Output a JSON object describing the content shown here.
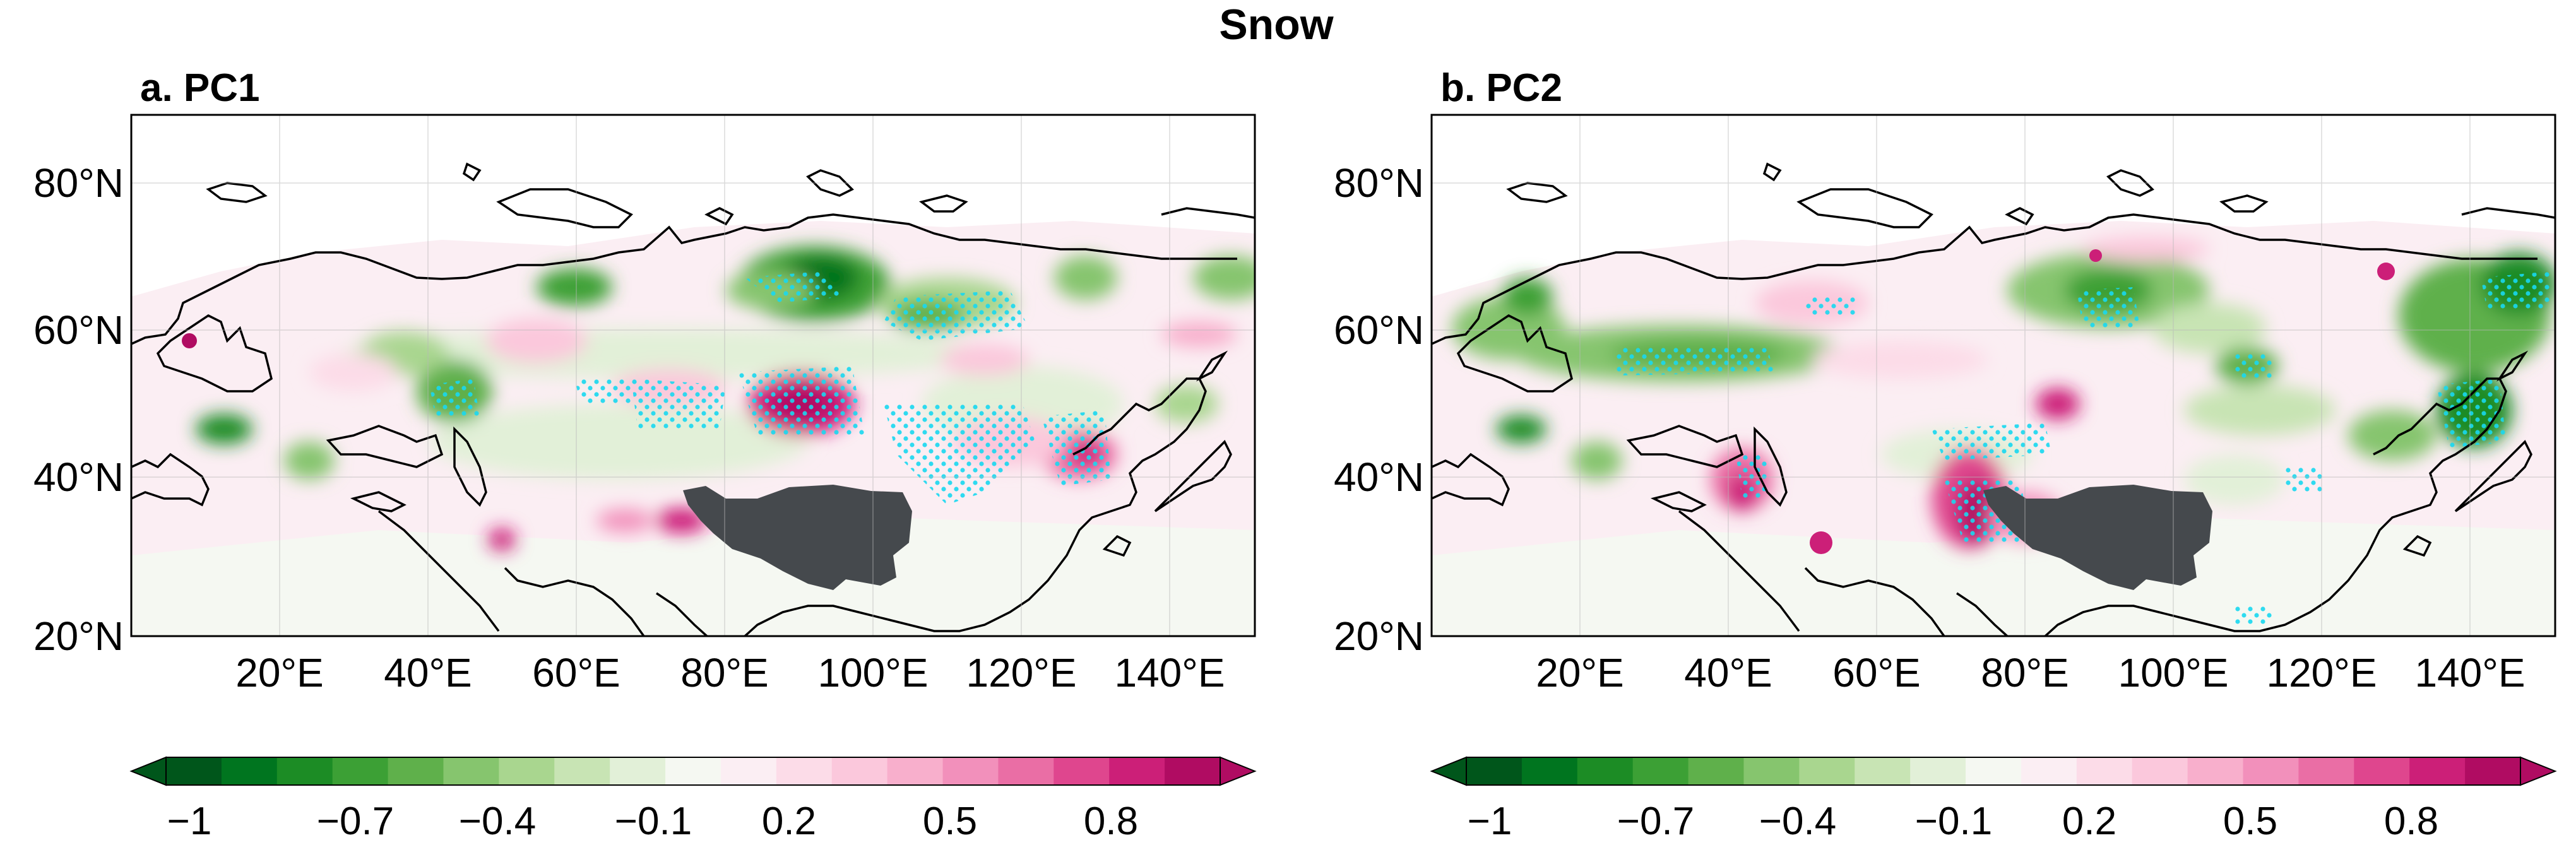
{
  "figure": {
    "title": "Snow"
  },
  "panels": [
    {
      "label": "a. PC1",
      "lat_labels": [
        "80°N",
        "60°N",
        "40°N",
        "20°N"
      ],
      "lon_labels": [
        "20°E",
        "40°E",
        "60°E",
        "80°E",
        "100°E",
        "120°E",
        "140°E"
      ]
    },
    {
      "label": "b. PC2",
      "lat_labels": [
        "80°N",
        "60°N",
        "40°N",
        "20°N"
      ],
      "lon_labels": [
        "20°E",
        "40°E",
        "60°E",
        "80°E",
        "100°E",
        "120°E",
        "140°E"
      ]
    }
  ],
  "colorbar": {
    "tick_labels": [
      "−1",
      "−0.7",
      "−0.4",
      "−0.1",
      "0.2",
      "0.5",
      "0.8"
    ],
    "colors": [
      "#00561b",
      "#00751f",
      "#1c8c25",
      "#3ca035",
      "#5fb04b",
      "#86c56e",
      "#a9d68f",
      "#c8e4b4",
      "#e2f0d8",
      "#f5f8f2",
      "#fbeef3",
      "#fcdce8",
      "#fbc8dc",
      "#f8afcc",
      "#f290bb",
      "#ea6ea5",
      "#df468e",
      "#cc1f78",
      "#b00c62"
    ],
    "extend": "both"
  },
  "chart_data": {
    "type": "heatmap",
    "title": "Snow",
    "maps": [
      {
        "panel": "a. PC1",
        "variable": "Snow correlation / loading",
        "lon_range": [
          0,
          152
        ],
        "lat_range": [
          20,
          90
        ],
        "lon_ticks": [
          20,
          40,
          60,
          80,
          100,
          120,
          140
        ],
        "lat_ticks": [
          20,
          40,
          60,
          80
        ],
        "masked_region": "Tibetan Plateau (dark grey)",
        "stippling": "significance dots (cyan)",
        "features": [
          {
            "lon": 92,
            "lat": 66,
            "value": -0.8
          },
          {
            "lon": 58,
            "lat": 67,
            "value": -0.6
          },
          {
            "lon": 45,
            "lat": 52,
            "value": -0.5
          },
          {
            "lon": 12,
            "lat": 47,
            "value": -0.6
          },
          {
            "lon": 110,
            "lat": 63,
            "value": -0.4
          },
          {
            "lon": 150,
            "lat": 64,
            "value": -0.4
          },
          {
            "lon": 88,
            "lat": 52,
            "value": 0.9
          },
          {
            "lon": 125,
            "lat": 44,
            "value": 0.6
          },
          {
            "lon": 52,
            "lat": 33,
            "value": 0.7
          },
          {
            "lon": 76,
            "lat": 35,
            "value": 0.8
          },
          {
            "lon": 6,
            "lat": 60,
            "value": 0.9
          },
          {
            "lon": 22,
            "lat": 65,
            "value": 0.2
          },
          {
            "lon": 70,
            "lat": 58,
            "value": 0.2
          },
          {
            "lon": 115,
            "lat": 50,
            "value": 0.2
          }
        ]
      },
      {
        "panel": "b. PC2",
        "variable": "Snow correlation / loading",
        "lon_range": [
          0,
          152
        ],
        "lat_range": [
          20,
          90
        ],
        "lon_ticks": [
          20,
          40,
          60,
          80,
          100,
          120,
          140
        ],
        "lat_ticks": [
          20,
          40,
          60,
          80
        ],
        "masked_region": "Tibetan Plateau (dark grey)",
        "stippling": "significance dots (cyan)",
        "features": [
          {
            "lon": 92,
            "lat": 64,
            "value": -0.7
          },
          {
            "lon": 148,
            "lat": 62,
            "value": -0.7
          },
          {
            "lon": 138,
            "lat": 50,
            "value": -0.8
          },
          {
            "lon": 35,
            "lat": 56,
            "value": -0.5
          },
          {
            "lon": 14,
            "lat": 62,
            "value": -0.5
          },
          {
            "lon": 10,
            "lat": 47,
            "value": -0.6
          },
          {
            "lon": 110,
            "lat": 55,
            "value": -0.5
          },
          {
            "lon": 125,
            "lat": 47,
            "value": -0.3
          },
          {
            "lon": 71,
            "lat": 38,
            "value": 0.9
          },
          {
            "lon": 41,
            "lat": 39,
            "value": 0.8
          },
          {
            "lon": 50,
            "lat": 33,
            "value": 0.8
          },
          {
            "lon": 83,
            "lat": 50,
            "value": 0.8
          },
          {
            "lon": 127,
            "lat": 69,
            "value": 0.7
          },
          {
            "lon": 92,
            "lat": 70,
            "value": 0.6
          },
          {
            "lon": 52,
            "lat": 65,
            "value": 0.3
          }
        ]
      }
    ],
    "colorbar_ticks": [
      -1,
      -0.7,
      -0.4,
      -0.1,
      0.2,
      0.5,
      0.8
    ],
    "colorbar_range": [
      -1,
      1
    ]
  }
}
